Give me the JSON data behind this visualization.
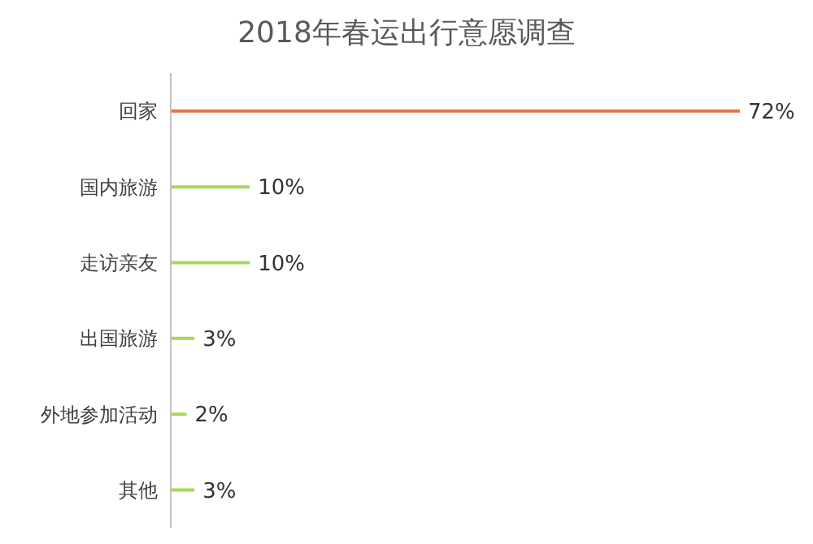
{
  "chart_data": {
    "type": "bar",
    "orientation": "horizontal",
    "title": "2018年春运出行意愿调查",
    "categories": [
      "回家",
      "国内旅游",
      "走访亲友",
      "出国旅游",
      "外地参加活动",
      "其他"
    ],
    "values": [
      72,
      10,
      10,
      3,
      2,
      3
    ],
    "colors": [
      "#e8734a",
      "#a6d85a",
      "#a6d85a",
      "#a6d85a",
      "#a6d85a",
      "#a6d85a"
    ],
    "value_labels": [
      "72%",
      "10%",
      "10%",
      "3%",
      "2%",
      "3%"
    ]
  }
}
